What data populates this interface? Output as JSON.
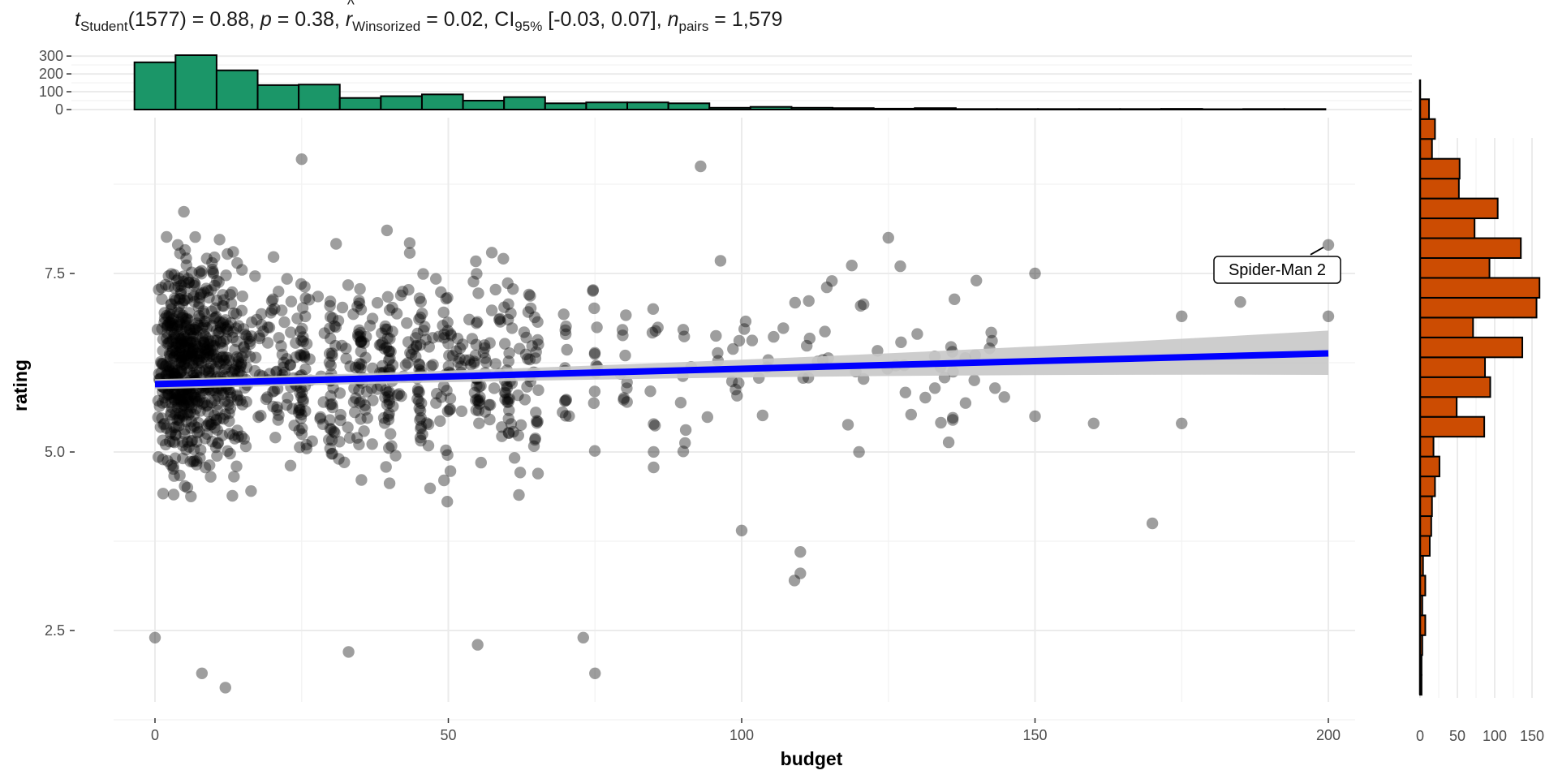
{
  "subtitle": {
    "t_sym": "t",
    "t_sub": "Student",
    "t_rest": "(1577) = 0.88, ",
    "p_sym": "p",
    "p_rest": " = 0.38, ",
    "r_sym": "r",
    "r_sub": "Winsorized",
    "r_rest": " = 0.02, CI",
    "ci_sub": "95%",
    "ci_rest": " [-0.03, 0.07], ",
    "n_sym": "n",
    "n_sub": "pairs",
    "n_rest": " = 1,579"
  },
  "colors": {
    "top_hist_fill": "#1b9668",
    "right_hist_fill": "#cc4c02",
    "regression_line": "#0000ff",
    "ci_band": "#c8c8c8",
    "points": "#000000",
    "grid": "#ebebeb"
  },
  "chart_data": [
    {
      "type": "scatter",
      "xlabel": "budget",
      "ylabel": "rating",
      "xlim": [
        -5,
        208
      ],
      "ylim": [
        1.35,
        9.4
      ],
      "x_ticks": [
        "0",
        "50",
        "100",
        "150",
        "200"
      ],
      "x_tick_values": [
        0,
        50,
        100,
        150,
        200
      ],
      "y_ticks": [
        "2.5",
        "5.0",
        "7.5"
      ],
      "y_tick_values": [
        2.5,
        5.0,
        7.5
      ],
      "grid": true,
      "regression": {
        "type": "linear",
        "x_range": [
          0,
          200
        ],
        "y_start": 5.95,
        "y_end": 6.38,
        "ci_start": [
          5.88,
          6.02
        ],
        "ci_end": [
          6.08,
          6.7
        ]
      },
      "annotation": {
        "label": "Spider-Man 2",
        "x": 200,
        "y": 7.9
      },
      "highlighted_points": [
        {
          "x": 93,
          "y": 9.0
        },
        {
          "x": 25,
          "y": 9.1
        },
        {
          "x": 200,
          "y": 6.9
        },
        {
          "x": 185,
          "y": 7.1
        },
        {
          "x": 175,
          "y": 6.9
        },
        {
          "x": 175,
          "y": 5.4
        },
        {
          "x": 170,
          "y": 4.0
        },
        {
          "x": 150,
          "y": 7.5
        },
        {
          "x": 150,
          "y": 5.5
        },
        {
          "x": 160,
          "y": 5.4
        },
        {
          "x": 140,
          "y": 7.4
        },
        {
          "x": 125,
          "y": 8.0
        },
        {
          "x": 120,
          "y": 5.0
        },
        {
          "x": 110,
          "y": 3.3
        },
        {
          "x": 109,
          "y": 3.2
        },
        {
          "x": 110,
          "y": 3.6
        },
        {
          "x": 100,
          "y": 3.9
        },
        {
          "x": 75,
          "y": 1.9
        },
        {
          "x": 12,
          "y": 1.7
        },
        {
          "x": 8,
          "y": 1.9
        },
        {
          "x": 0,
          "y": 2.4
        },
        {
          "x": 55,
          "y": 2.3
        },
        {
          "x": 33,
          "y": 2.2
        },
        {
          "x": 73,
          "y": 2.4
        }
      ],
      "point_density": "1579 points concentrated at budget 0-60, rating 3.5-8.5"
    },
    {
      "type": "bar",
      "title": "",
      "orientation": "vertical",
      "axis": "budget",
      "bin_width": 7,
      "bin_start": -3.5,
      "values": [
        265,
        305,
        220,
        137,
        140,
        65,
        75,
        85,
        50,
        70,
        35,
        40,
        40,
        35,
        10,
        15,
        10,
        8,
        5,
        8,
        3,
        3,
        3,
        3,
        3,
        4,
        2,
        3,
        3
      ],
      "ylim": [
        0,
        305
      ],
      "y_ticks": [
        "0",
        "100",
        "200",
        "300"
      ],
      "y_tick_values": [
        0,
        100,
        200,
        300
      ]
    },
    {
      "type": "bar",
      "orientation": "horizontal",
      "axis": "rating",
      "bin_width": 0.278,
      "bin_start": 1.6,
      "values": [
        2,
        2,
        3,
        7,
        3,
        7,
        4,
        13,
        15,
        16,
        20,
        26,
        18,
        86,
        49,
        94,
        87,
        137,
        71,
        156,
        160,
        93,
        135,
        73,
        104,
        52,
        53,
        16,
        20,
        12,
        0
      ],
      "xlim": [
        0,
        165
      ],
      "x_ticks": [
        "0",
        "50",
        "100",
        "150"
      ],
      "x_tick_values": [
        0,
        50,
        100,
        150
      ]
    }
  ]
}
